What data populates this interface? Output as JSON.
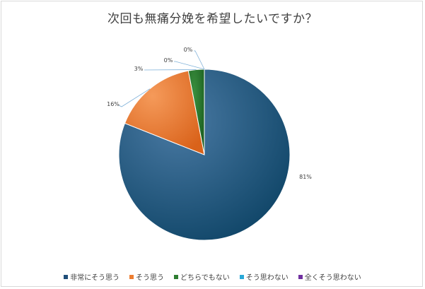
{
  "chart_data": {
    "type": "pie",
    "title": "次回も無痛分娩を希望したいですか？",
    "categories": [
      "非常にそう思う",
      "そう思う",
      "どちらでもない",
      "そう思わない",
      "全くそう思わない"
    ],
    "values": [
      81,
      16,
      3,
      0,
      0
    ],
    "data_labels": [
      "81%",
      "16%",
      "3%",
      "0%",
      "0%"
    ],
    "colors": [
      "#2f5d84",
      "#ed7d31",
      "#2e7d32",
      "#29a9d8",
      "#7030a0"
    ],
    "legend_position": "bottom"
  }
}
